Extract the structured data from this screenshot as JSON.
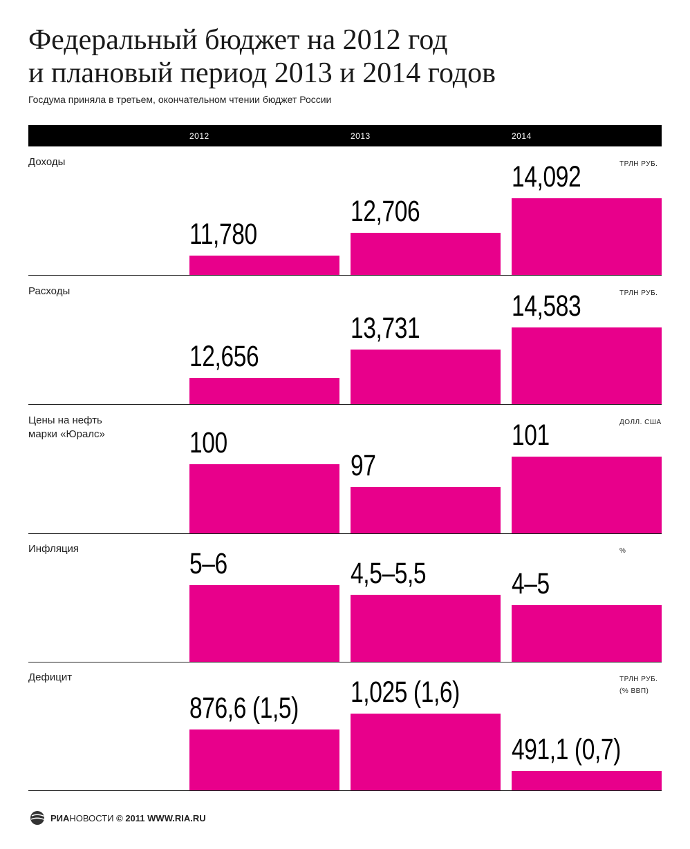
{
  "header": {
    "title_line1": "Федеральный бюджет на 2012 год",
    "title_line2": "и плановый период 2013 и 2014 годов",
    "subtitle": "Госдума приняла в третьем, окончательном чтении бюджет России"
  },
  "years": [
    "2012",
    "2013",
    "2014"
  ],
  "footer": {
    "brand_bold": "РИА",
    "brand_rest": "НОВОСТИ",
    "copyright": "© 2011",
    "url": "WWW.RIA.RU"
  },
  "colors": {
    "bar": "#e8008b",
    "header_bg": "#000000"
  },
  "chart_data": [
    {
      "type": "bar",
      "category": "Доходы",
      "unit": "ТРЛН РУБ.",
      "labels": [
        "11,780",
        "12,706",
        "14,092"
      ],
      "values": [
        11.78,
        12.706,
        14.092
      ]
    },
    {
      "type": "bar",
      "category": "Расходы",
      "unit": "ТРЛН РУБ.",
      "labels": [
        "12,656",
        "13,731",
        "14,583"
      ],
      "values": [
        12.656,
        13.731,
        14.583
      ]
    },
    {
      "type": "bar",
      "category": "Цены на нефть\nмарки «Юралс»",
      "unit": "ДОЛЛ. США",
      "labels": [
        "100",
        "97",
        "101"
      ],
      "values": [
        100,
        97,
        101
      ]
    },
    {
      "type": "bar",
      "category": "Инфляция",
      "unit": "%",
      "labels": [
        "5–6",
        "4,5–5,5",
        "4–5"
      ],
      "values": [
        5.5,
        5,
        4.5
      ]
    },
    {
      "type": "bar",
      "category": "Дефицит",
      "unit": "ТРЛН РУБ.\n(% ВВП)",
      "labels": [
        "876,6 (1,5)",
        "1,025 (1,6)",
        "491,1 (0,7)"
      ],
      "values": [
        0.8766,
        1.025,
        0.4911
      ]
    }
  ]
}
